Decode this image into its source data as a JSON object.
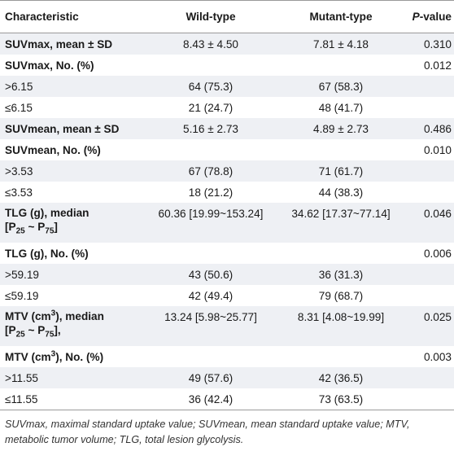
{
  "header": {
    "characteristic": "Characteristic",
    "wild": "Wild-type",
    "mutant": "Mutant-type",
    "p_italic": "P",
    "p_rest": "-value"
  },
  "rows": [
    {
      "label": "SUVmax, mean ± SD",
      "wild": "8.43 ± 4.50",
      "mutant": "7.81 ± 4.18",
      "p": "0.310"
    },
    {
      "label": "SUVmax, No. (%)",
      "wild": "",
      "mutant": "",
      "p": "0.012"
    },
    {
      "label": ">6.15",
      "wild": "64 (75.3)",
      "mutant": "67 (58.3)",
      "p": ""
    },
    {
      "label": "≤6.15",
      "wild": "21 (24.7)",
      "mutant": "48 (41.7)",
      "p": ""
    },
    {
      "label": "SUVmean, mean ± SD",
      "wild": "5.16 ± 2.73",
      "mutant": "4.89 ± 2.73",
      "p": "0.486"
    },
    {
      "label": "SUVmean, No. (%)",
      "wild": "",
      "mutant": "",
      "p": "0.010"
    },
    {
      "label": ">3.53",
      "wild": "67 (78.8)",
      "mutant": "71 (61.7)",
      "p": ""
    },
    {
      "label": "≤3.53",
      "wild": "18 (21.2)",
      "mutant": "44 (38.3)",
      "p": ""
    },
    {
      "label_a": "TLG (g), median",
      "label_b_pre": "[P",
      "sub1": "25",
      "label_b_mid": " ~ P",
      "sub2": "75",
      "label_b_post": "]",
      "wild": "60.36 [19.99~153.24]",
      "mutant": "34.62 [17.37~77.14]",
      "p": "0.046"
    },
    {
      "label": "TLG (g), No. (%)",
      "wild": "",
      "mutant": "",
      "p": "0.006"
    },
    {
      "label": ">59.19",
      "wild": "43 (50.6)",
      "mutant": "36 (31.3)",
      "p": ""
    },
    {
      "label": "≤59.19",
      "wild": "42 (49.4)",
      "mutant": "79 (68.7)",
      "p": ""
    },
    {
      "label_a_pre": "MTV (cm",
      "sup": "3",
      "label_a_post": "), median",
      "label_b_pre": "[P",
      "sub1": "25",
      "label_b_mid": " ~ P",
      "sub2": "75",
      "label_b_post": "],",
      "wild": "13.24 [5.98~25.77]",
      "mutant": "8.31 [4.08~19.99]",
      "p": "0.025"
    },
    {
      "label_pre": "MTV (cm",
      "sup": "3",
      "label_post": "), No. (%)",
      "wild": "",
      "mutant": "",
      "p": "0.003"
    },
    {
      "label": ">11.55",
      "wild": "49 (57.6)",
      "mutant": "42 (36.5)",
      "p": ""
    },
    {
      "label": "≤11.55",
      "wild": "36 (42.4)",
      "mutant": "73 (63.5)",
      "p": ""
    }
  ],
  "footnote": "SUVmax, maximal standard uptake value; SUVmean, mean standard uptake value; MTV, metabolic tumor volume; TLG, total lesion glycolysis."
}
